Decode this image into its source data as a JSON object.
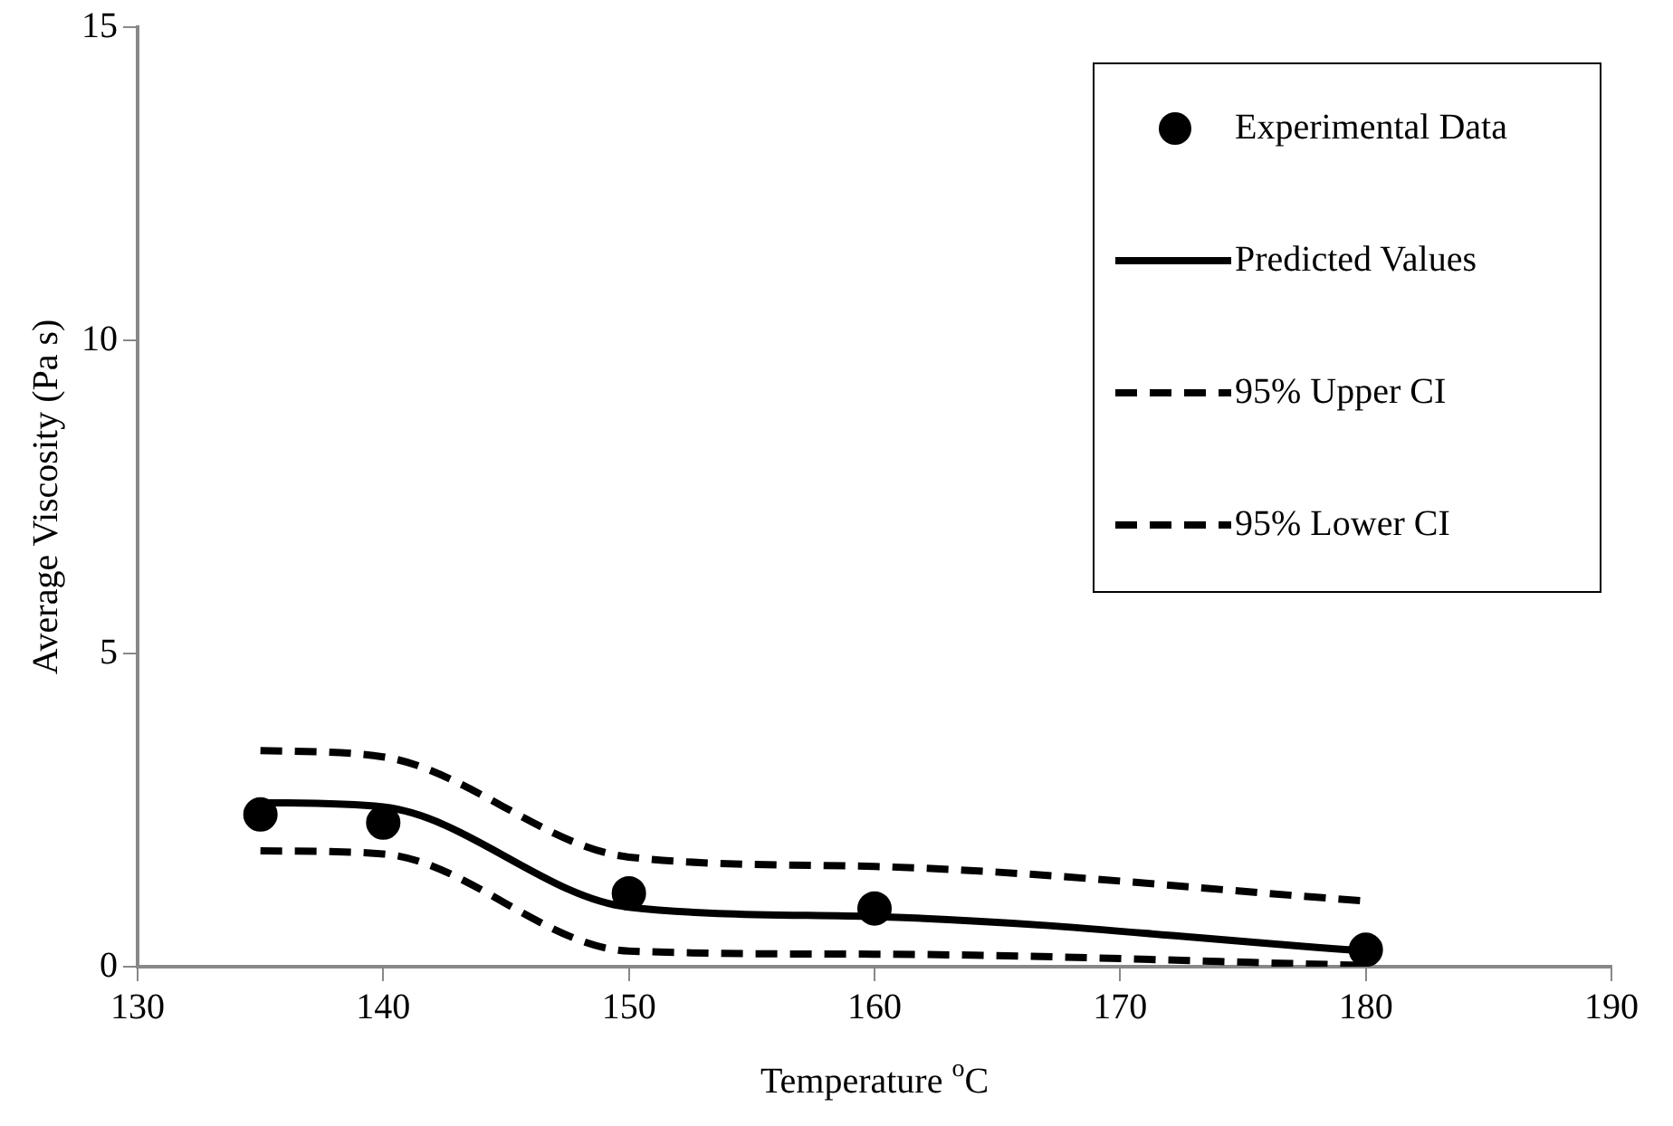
{
  "chart_data": {
    "type": "scatter",
    "xlabel": "Temperature $^{o}$C",
    "ylabel": "Average Viscosity (Pa s)",
    "xlim": [
      130,
      190
    ],
    "xticks": [
      130,
      140,
      150,
      160,
      170,
      180,
      190
    ],
    "ylim": [
      0,
      15
    ],
    "yticks": [
      0,
      5,
      10,
      15
    ],
    "grid": false,
    "legend": "top right",
    "series": [
      {
        "name": "Experimental Data",
        "color": "#000000",
        "marker": "circle",
        "x": [
          135,
          140,
          150,
          160,
          180
        ],
        "values": [
          2.43,
          2.3,
          1.17,
          0.93,
          0.27
        ]
      },
      {
        "name": "Predicted Values",
        "type": "line",
        "color": "#000000",
        "marker": "none",
        "line_style": "solid",
        "x": [
          135,
          140,
          150,
          160,
          180
        ],
        "values": [
          2.62,
          2.55,
          0.95,
          0.8,
          0.25
        ]
      },
      {
        "name": "95% Upper CI",
        "type": "line",
        "color": "#000000",
        "marker": "none",
        "line_style": "dashed",
        "x": [
          135,
          140,
          150,
          160,
          180
        ],
        "values": [
          3.45,
          3.35,
          1.75,
          1.6,
          1.05
        ]
      },
      {
        "name": "95% Lower CI",
        "type": "line",
        "color": "#000000",
        "marker": "none",
        "line_style": "dashed",
        "x": [
          135,
          140,
          150,
          160,
          180
        ],
        "values": [
          1.85,
          1.8,
          0.25,
          0.2,
          0.02
        ]
      }
    ]
  }
}
